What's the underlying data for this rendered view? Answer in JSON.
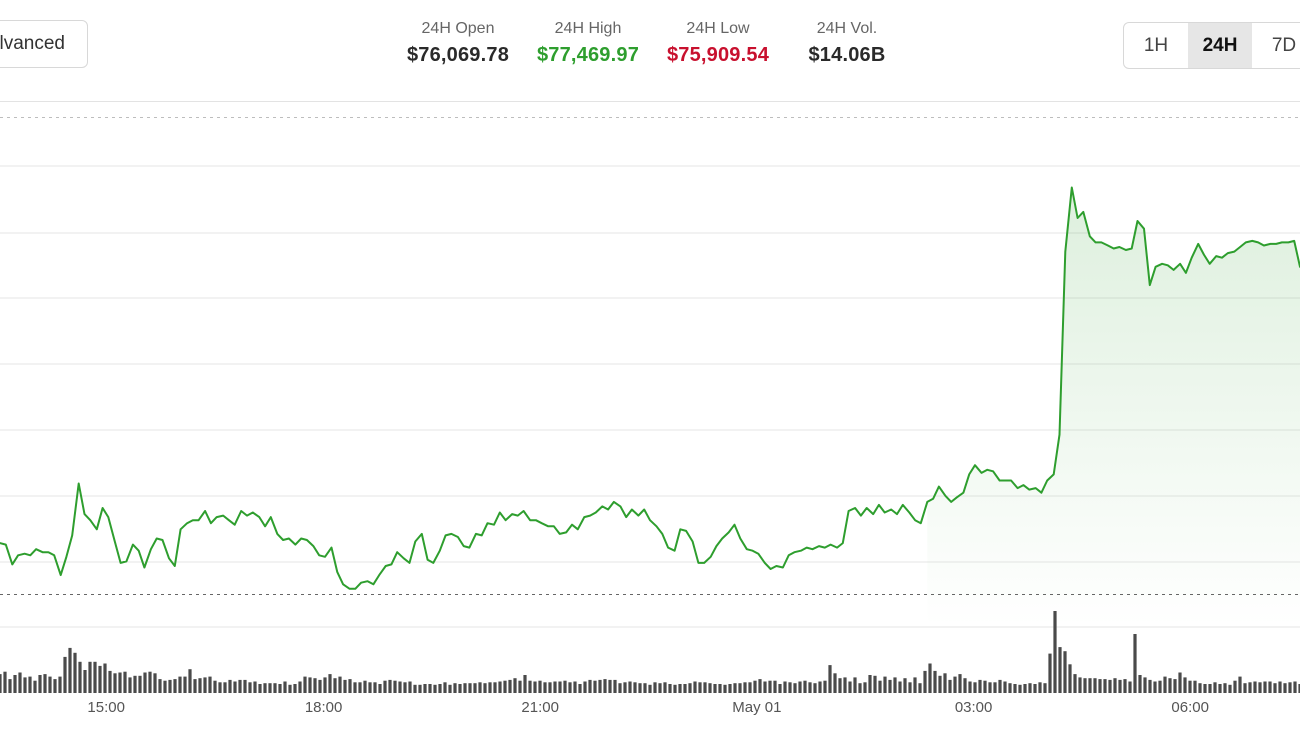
{
  "toolbar": {
    "advanced_label": "lvanced",
    "ranges": [
      "1H",
      "24H",
      "7D"
    ],
    "active_range": "24H"
  },
  "stats": {
    "open": {
      "label": "24H Open",
      "value": "$76,069.78"
    },
    "high": {
      "label": "24H High",
      "value": "$77,469.97"
    },
    "low": {
      "label": "24H Low",
      "value": "$75,909.54"
    },
    "vol": {
      "label": "24H Vol.",
      "value": "$14.06B"
    }
  },
  "colors": {
    "line": "#2e9e2e",
    "fill": "#2e9e2e",
    "high_value": "#2e9e2e",
    "low_value": "#c8102e",
    "volume_bar": "#4a4a4a",
    "grid": "#e6e6e6"
  },
  "chart_data": {
    "type": "line",
    "title": "",
    "x_ticks": [
      "15:00",
      "18:00",
      "21:00",
      "May 01",
      "03:00",
      "06:00"
    ],
    "x_tick_hours": [
      14.99,
      18.0,
      21.0,
      24.0,
      27.0,
      30.0
    ],
    "x_range_hours": [
      13.52,
      31.52
    ],
    "y_range": [
      75800,
      77520
    ],
    "reference_lines": {
      "high": 77469.97,
      "low": 75909.54
    },
    "grid": true,
    "legend": "none",
    "series": [
      {
        "values": [
          [
            13.52,
            76075
          ],
          [
            13.6,
            76070
          ],
          [
            13.69,
            76005
          ],
          [
            13.77,
            76035
          ],
          [
            13.86,
            76040
          ],
          [
            13.94,
            76035
          ],
          [
            14.02,
            76055
          ],
          [
            14.11,
            76045
          ],
          [
            14.19,
            76045
          ],
          [
            14.27,
            76035
          ],
          [
            14.36,
            75970
          ],
          [
            14.44,
            76030
          ],
          [
            14.52,
            76100
          ],
          [
            14.61,
            76270
          ],
          [
            14.69,
            76170
          ],
          [
            14.77,
            76150
          ],
          [
            14.86,
            76120
          ],
          [
            14.94,
            76190
          ],
          [
            15.02,
            76160
          ],
          [
            15.11,
            76080
          ],
          [
            15.19,
            76010
          ],
          [
            15.27,
            76015
          ],
          [
            15.36,
            76070
          ],
          [
            15.44,
            76050
          ],
          [
            15.52,
            75995
          ],
          [
            15.61,
            76055
          ],
          [
            15.69,
            76090
          ],
          [
            15.77,
            76085
          ],
          [
            15.86,
            76025
          ],
          [
            15.94,
            76000
          ],
          [
            16.02,
            76120
          ],
          [
            16.11,
            76140
          ],
          [
            16.19,
            76150
          ],
          [
            16.27,
            76150
          ],
          [
            16.36,
            76180
          ],
          [
            16.44,
            76140
          ],
          [
            16.52,
            76160
          ],
          [
            16.61,
            76165
          ],
          [
            16.69,
            76150
          ],
          [
            16.77,
            76135
          ],
          [
            16.86,
            76180
          ],
          [
            16.94,
            76165
          ],
          [
            17.02,
            76175
          ],
          [
            17.11,
            76160
          ],
          [
            17.19,
            76130
          ],
          [
            17.27,
            76160
          ],
          [
            17.36,
            76105
          ],
          [
            17.44,
            76085
          ],
          [
            17.52,
            76090
          ],
          [
            17.61,
            76070
          ],
          [
            17.69,
            76090
          ],
          [
            17.77,
            76085
          ],
          [
            17.86,
            76065
          ],
          [
            17.94,
            76035
          ],
          [
            18.02,
            76030
          ],
          [
            18.11,
            76060
          ],
          [
            18.19,
            75980
          ],
          [
            18.27,
            75940
          ],
          [
            18.36,
            75925
          ],
          [
            18.44,
            75925
          ],
          [
            18.52,
            75945
          ],
          [
            18.61,
            75950
          ],
          [
            18.69,
            75940
          ],
          [
            18.77,
            75970
          ],
          [
            18.86,
            76000
          ],
          [
            18.94,
            76005
          ],
          [
            19.02,
            76045
          ],
          [
            19.11,
            76025
          ],
          [
            19.19,
            76010
          ],
          [
            19.27,
            76080
          ],
          [
            19.36,
            76105
          ],
          [
            19.44,
            76020
          ],
          [
            19.52,
            76010
          ],
          [
            19.61,
            76050
          ],
          [
            19.69,
            76100
          ],
          [
            19.77,
            76105
          ],
          [
            19.86,
            76095
          ],
          [
            19.94,
            76065
          ],
          [
            20.02,
            76060
          ],
          [
            20.11,
            76105
          ],
          [
            20.19,
            76100
          ],
          [
            20.27,
            76140
          ],
          [
            20.36,
            76135
          ],
          [
            20.44,
            76175
          ],
          [
            20.52,
            76150
          ],
          [
            20.61,
            76170
          ],
          [
            20.69,
            76165
          ],
          [
            20.77,
            76180
          ],
          [
            20.86,
            76150
          ],
          [
            20.94,
            76150
          ],
          [
            21.02,
            76140
          ],
          [
            21.11,
            76130
          ],
          [
            21.19,
            76130
          ],
          [
            21.27,
            76105
          ],
          [
            21.36,
            76110
          ],
          [
            21.44,
            76135
          ],
          [
            21.52,
            76120
          ],
          [
            21.61,
            76160
          ],
          [
            21.69,
            76165
          ],
          [
            21.77,
            76175
          ],
          [
            21.86,
            76195
          ],
          [
            21.94,
            76185
          ],
          [
            22.02,
            76210
          ],
          [
            22.11,
            76195
          ],
          [
            22.19,
            76160
          ],
          [
            22.27,
            76185
          ],
          [
            22.36,
            76165
          ],
          [
            22.44,
            76185
          ],
          [
            22.52,
            76150
          ],
          [
            22.61,
            76130
          ],
          [
            22.69,
            76105
          ],
          [
            22.77,
            76060
          ],
          [
            22.86,
            76050
          ],
          [
            22.94,
            76120
          ],
          [
            23.02,
            76115
          ],
          [
            23.11,
            76080
          ],
          [
            23.19,
            76010
          ],
          [
            23.27,
            76010
          ],
          [
            23.36,
            76030
          ],
          [
            23.44,
            76065
          ],
          [
            23.52,
            76090
          ],
          [
            23.61,
            76110
          ],
          [
            23.69,
            76135
          ],
          [
            23.77,
            76090
          ],
          [
            23.86,
            76055
          ],
          [
            23.94,
            76050
          ],
          [
            24.02,
            76040
          ],
          [
            24.11,
            76010
          ],
          [
            24.19,
            75990
          ],
          [
            24.27,
            76000
          ],
          [
            24.36,
            75995
          ],
          [
            24.44,
            76035
          ],
          [
            24.52,
            76045
          ],
          [
            24.61,
            76050
          ],
          [
            24.69,
            76060
          ],
          [
            24.77,
            76055
          ],
          [
            24.86,
            76065
          ],
          [
            24.94,
            76060
          ],
          [
            25.02,
            76070
          ],
          [
            25.11,
            76060
          ],
          [
            25.19,
            76075
          ],
          [
            25.27,
            76180
          ],
          [
            25.36,
            76190
          ],
          [
            25.44,
            76165
          ],
          [
            25.52,
            76190
          ],
          [
            25.61,
            76170
          ],
          [
            25.69,
            76200
          ],
          [
            25.77,
            76175
          ],
          [
            25.86,
            76185
          ],
          [
            25.94,
            76170
          ],
          [
            26.02,
            76200
          ],
          [
            26.11,
            76175
          ],
          [
            26.19,
            76150
          ],
          [
            26.27,
            76140
          ],
          [
            26.36,
            76210
          ],
          [
            26.44,
            76220
          ],
          [
            26.52,
            76260
          ],
          [
            26.61,
            76230
          ],
          [
            26.69,
            76210
          ],
          [
            26.77,
            76225
          ],
          [
            26.86,
            76240
          ],
          [
            26.94,
            76300
          ],
          [
            27.02,
            76330
          ],
          [
            27.11,
            76305
          ],
          [
            27.19,
            76315
          ],
          [
            27.27,
            76310
          ],
          [
            27.36,
            76280
          ],
          [
            27.44,
            76280
          ],
          [
            27.52,
            76280
          ],
          [
            27.61,
            76255
          ],
          [
            27.69,
            76265
          ],
          [
            27.77,
            76250
          ],
          [
            27.86,
            76255
          ],
          [
            27.94,
            76240
          ],
          [
            28.02,
            76280
          ],
          [
            28.11,
            76300
          ],
          [
            28.19,
            76430
          ],
          [
            28.27,
            77030
          ],
          [
            28.36,
            77240
          ],
          [
            28.44,
            77140
          ],
          [
            28.52,
            77160
          ],
          [
            28.61,
            77080
          ],
          [
            28.69,
            77060
          ],
          [
            28.77,
            77060
          ],
          [
            28.86,
            77050
          ],
          [
            28.94,
            77040
          ],
          [
            29.02,
            77045
          ],
          [
            29.11,
            77035
          ],
          [
            29.19,
            77040
          ],
          [
            29.27,
            77130
          ],
          [
            29.36,
            77105
          ],
          [
            29.44,
            76920
          ],
          [
            29.52,
            76980
          ],
          [
            29.61,
            76990
          ],
          [
            29.69,
            76985
          ],
          [
            29.77,
            76970
          ],
          [
            29.86,
            76990
          ],
          [
            29.94,
            76960
          ],
          [
            30.02,
            77010
          ],
          [
            30.11,
            77055
          ],
          [
            30.19,
            77020
          ],
          [
            30.27,
            76990
          ],
          [
            30.36,
            77015
          ],
          [
            30.44,
            77010
          ],
          [
            30.52,
            77025
          ],
          [
            30.61,
            77030
          ],
          [
            30.69,
            77045
          ],
          [
            30.77,
            77060
          ],
          [
            30.86,
            77065
          ],
          [
            30.94,
            77060
          ],
          [
            31.02,
            77050
          ],
          [
            31.11,
            77055
          ],
          [
            31.19,
            77055
          ],
          [
            31.27,
            77060
          ],
          [
            31.36,
            77060
          ],
          [
            31.44,
            77065
          ],
          [
            31.52,
            76980
          ]
        ]
      }
    ],
    "volume": {
      "ylim": [
        0,
        100
      ],
      "values": [
        23,
        26,
        17,
        22,
        25,
        19,
        20,
        15,
        22,
        23,
        20,
        17,
        20,
        44,
        55,
        49,
        38,
        28,
        38,
        38,
        33,
        36,
        27,
        24,
        25,
        26,
        19,
        21,
        21,
        25,
        26,
        24,
        17,
        15,
        16,
        17,
        20,
        20,
        29,
        17,
        18,
        19,
        20,
        15,
        13,
        13,
        16,
        14,
        16,
        16,
        13,
        14,
        11,
        12,
        12,
        12,
        11,
        14,
        10,
        11,
        14,
        20,
        19,
        18,
        16,
        19,
        23,
        18,
        20,
        16,
        17,
        13,
        13,
        15,
        13,
        13,
        11,
        15,
        16,
        15,
        14,
        13,
        14,
        10,
        10,
        11,
        11,
        10,
        11,
        13,
        10,
        12,
        11,
        12,
        12,
        12,
        13,
        12,
        13,
        13,
        14,
        15,
        16,
        18,
        15,
        22,
        15,
        14,
        15,
        13,
        13,
        14,
        14,
        15,
        13,
        14,
        11,
        14,
        16,
        15,
        16,
        17,
        16,
        16,
        12,
        13,
        14,
        13,
        12,
        12,
        10,
        13,
        12,
        13,
        11,
        10,
        11,
        11,
        12,
        14,
        13,
        13,
        12,
        11,
        11,
        10,
        11,
        12,
        12,
        13,
        13,
        15,
        17,
        14,
        15,
        15,
        11,
        14,
        13,
        12,
        14,
        15,
        13,
        12,
        14,
        15,
        34,
        24,
        18,
        19,
        14,
        19,
        12,
        13,
        22,
        21,
        15,
        20,
        16,
        19,
        14,
        18,
        13,
        19,
        12,
        27,
        36,
        27,
        21,
        24,
        16,
        20,
        23,
        18,
        14,
        13,
        16,
        15,
        13,
        13,
        16,
        14,
        12,
        11,
        10,
        11,
        12,
        11,
        13,
        12,
        48,
        100,
        56,
        51,
        35,
        23,
        19,
        18,
        18,
        18,
        17,
        17,
        16,
        18,
        16,
        17,
        14,
        72,
        22,
        19,
        16,
        14,
        15,
        20,
        18,
        17,
        25,
        19,
        15,
        15,
        12,
        11,
        11,
        13,
        11,
        12,
        10,
        15,
        20,
        12,
        13,
        14,
        13,
        14,
        14,
        12,
        14,
        12,
        13,
        14,
        11
      ]
    }
  }
}
